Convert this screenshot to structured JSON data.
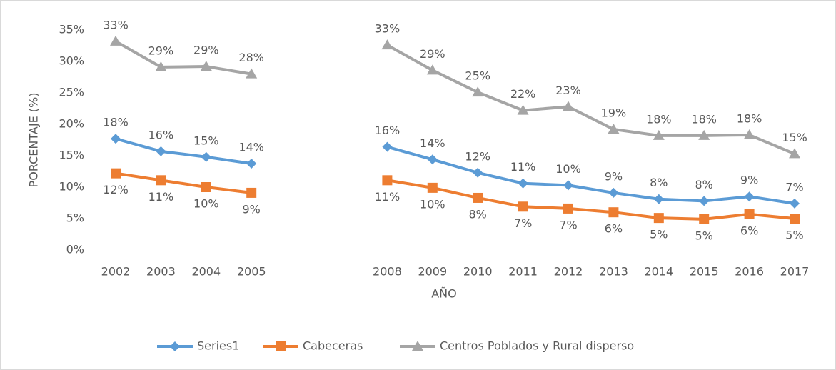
{
  "chart_data": {
    "type": "line",
    "x_label": "AÑO",
    "y_label": "PORCENTAJE (%)",
    "categories": [
      "2002",
      "2003",
      "2004",
      "2005",
      null,
      null,
      "2008",
      "2009",
      "2010",
      "2011",
      "2012",
      "2013",
      "2014",
      "2015",
      "2016",
      "2017"
    ],
    "ylim": [
      0,
      35
    ],
    "yticks": [
      {
        "value": 0,
        "label": "0%"
      },
      {
        "value": 5,
        "label": "5%"
      },
      {
        "value": 10,
        "label": "10%"
      },
      {
        "value": 15,
        "label": "15%"
      },
      {
        "value": 20,
        "label": "20%"
      },
      {
        "value": 25,
        "label": "25%"
      },
      {
        "value": 30,
        "label": "30%"
      },
      {
        "value": 35,
        "label": "35%"
      }
    ],
    "grid": false,
    "legend": "bottom",
    "series": [
      {
        "name": "Series1",
        "color": "#5b9bd5",
        "marker": "diamond",
        "values": [
          17.7,
          15.7,
          14.8,
          13.75,
          null,
          null,
          16.4,
          14.4,
          12.3,
          10.6,
          10.3,
          9.1,
          8.1,
          7.8,
          8.5,
          7.4
        ],
        "value_labels": [
          "18%",
          "16%",
          "15%",
          "14%",
          null,
          null,
          "16%",
          "14%",
          "12%",
          "11%",
          "10%",
          "9%",
          "8%",
          "8%",
          "9%",
          "7%"
        ]
      },
      {
        "name": "Cabeceras",
        "color": "#ed7d31",
        "marker": "square",
        "values": [
          12.2,
          11.1,
          10.0,
          9.1,
          null,
          null,
          11.1,
          9.9,
          8.3,
          6.9,
          6.6,
          6.0,
          5.1,
          4.9,
          5.7,
          5.0
        ],
        "value_labels": [
          "12%",
          "11%",
          "10%",
          "9%",
          null,
          null,
          "11%",
          "10%",
          "8%",
          "7%",
          "7%",
          "6%",
          "5%",
          "5%",
          "6%",
          "5%"
        ]
      },
      {
        "name": "Centros Poblados y Rural disperso",
        "color": "#a5a5a5",
        "marker": "triangle",
        "values": [
          33.2,
          29.1,
          29.2,
          28.0,
          null,
          null,
          32.6,
          28.6,
          25.1,
          22.2,
          22.8,
          19.2,
          18.2,
          18.2,
          18.3,
          15.3
        ],
        "value_labels": [
          "33%",
          "29%",
          "29%",
          "28%",
          null,
          null,
          "33%",
          "29%",
          "25%",
          "22%",
          "23%",
          "19%",
          "18%",
          "18%",
          "18%",
          "15%"
        ]
      }
    ]
  }
}
